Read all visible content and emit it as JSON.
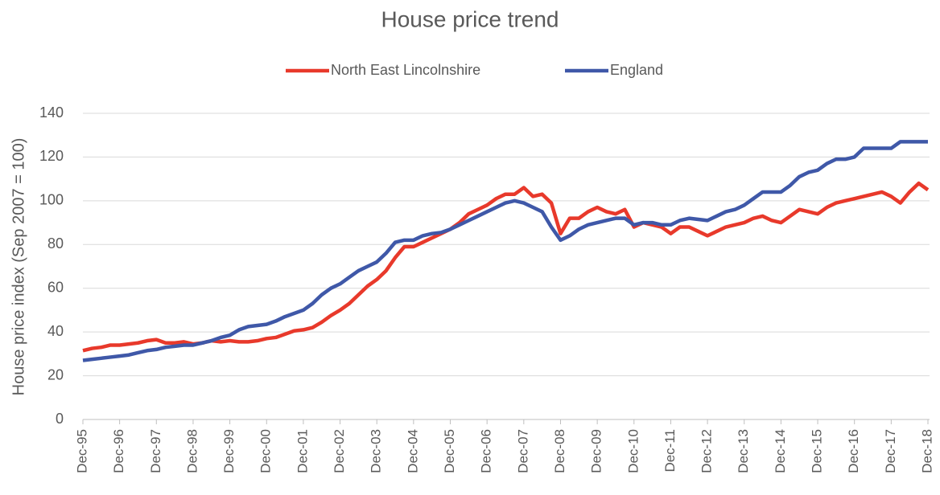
{
  "chart_data": {
    "type": "line",
    "title": "House price trend",
    "y_label": "House price index (Sep 2007 = 100)",
    "categories": [
      "Dec-95",
      null,
      null,
      null,
      "Dec-96",
      null,
      null,
      null,
      "Dec-97",
      null,
      null,
      null,
      "Dec-98",
      null,
      null,
      null,
      "Dec-99",
      null,
      null,
      null,
      "Dec-00",
      null,
      null,
      null,
      "Dec-01",
      null,
      null,
      null,
      "Dec-02",
      null,
      null,
      null,
      "Dec-03",
      null,
      null,
      null,
      "Dec-04",
      null,
      null,
      null,
      "Dec-05",
      null,
      null,
      null,
      "Dec-06",
      null,
      null,
      null,
      "Dec-07",
      null,
      null,
      null,
      "Dec-08",
      null,
      null,
      null,
      "Dec-09",
      null,
      null,
      null,
      "Dec-10",
      null,
      null,
      null,
      "Dec-11",
      null,
      null,
      null,
      "Dec-12",
      null,
      null,
      null,
      "Dec-13",
      null,
      null,
      null,
      "Dec-14",
      null,
      null,
      null,
      "Dec-15",
      null,
      null,
      null,
      "Dec-16",
      null,
      null,
      null,
      "Dec-17",
      null,
      null,
      null,
      "Dec-18"
    ],
    "series": [
      {
        "name": "North East Lincolnshire",
        "color": "#e8392b",
        "values": [
          31.5,
          32.5,
          33,
          34,
          34,
          34.5,
          35,
          36,
          36.5,
          35,
          35,
          35.5,
          34.5,
          35,
          36,
          35.5,
          36,
          35.5,
          35.5,
          36,
          37,
          37.5,
          39,
          40.5,
          41,
          42,
          44.5,
          47.5,
          50,
          53,
          57,
          61,
          64,
          68,
          74,
          79,
          79,
          81,
          83,
          85,
          87,
          90,
          94,
          96,
          98,
          101,
          103,
          103,
          106,
          102,
          103,
          99,
          85,
          92,
          92,
          95,
          97,
          95,
          94,
          96,
          88,
          90,
          89,
          88,
          85,
          88,
          88,
          86,
          84,
          86,
          88,
          89,
          90,
          92,
          93,
          91,
          90,
          93,
          96,
          95,
          94,
          97,
          99,
          100,
          101,
          102,
          103,
          104,
          102,
          99,
          104,
          108,
          105
        ]
      },
      {
        "name": "England",
        "color": "#3f58a8",
        "values": [
          27,
          27.5,
          28,
          28.5,
          29,
          29.5,
          30.5,
          31.5,
          32,
          33,
          33.5,
          34,
          34,
          35,
          36,
          37.5,
          38.5,
          41,
          42.5,
          43,
          43.5,
          45,
          47,
          48.5,
          50,
          53,
          57,
          60,
          62,
          65,
          68,
          70,
          72,
          76,
          81,
          82,
          82,
          84,
          85,
          85.5,
          87,
          89,
          91,
          93,
          95,
          97,
          99,
          100,
          99,
          97,
          95,
          88,
          82,
          84,
          87,
          89,
          90,
          91,
          92,
          92,
          89,
          90,
          90,
          89,
          89,
          91,
          92,
          91.5,
          91,
          93,
          95,
          96,
          98,
          101,
          104,
          104,
          104,
          107,
          111,
          113,
          114,
          117,
          119,
          119,
          120,
          124,
          124,
          124,
          124,
          127,
          127,
          127,
          127
        ]
      }
    ],
    "ylim": [
      0,
      140
    ],
    "yticks": [
      0,
      20,
      40,
      60,
      80,
      100,
      120,
      140
    ],
    "grid": true,
    "legend": "top"
  }
}
